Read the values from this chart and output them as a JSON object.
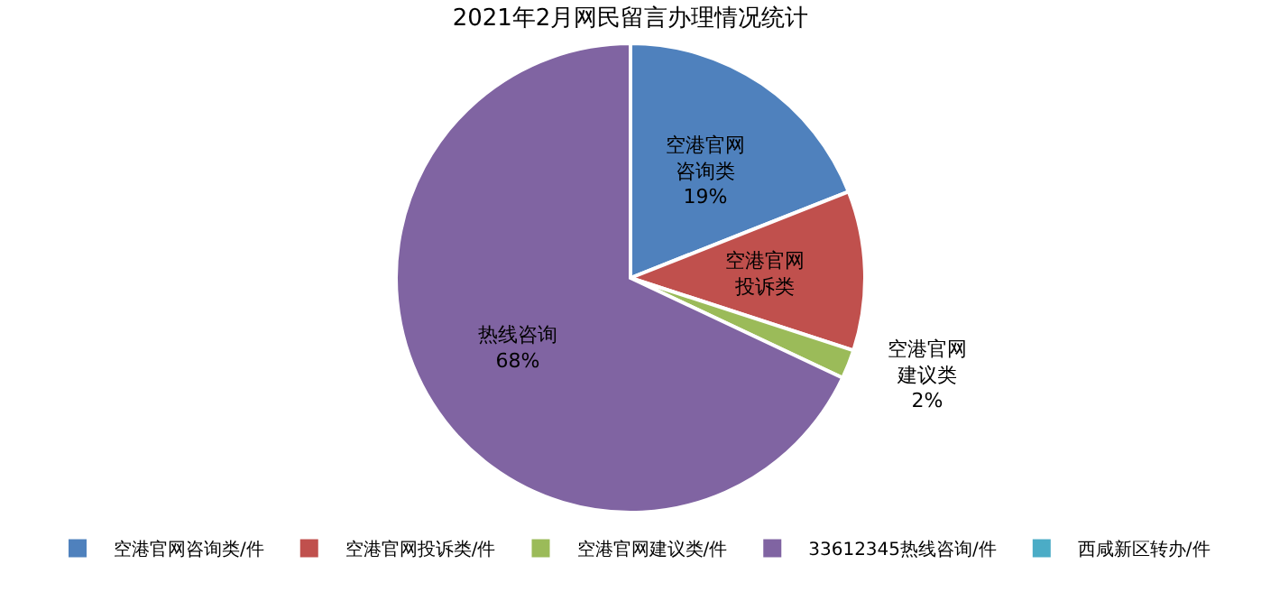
{
  "chart_data": {
    "type": "pie",
    "title": "2021年2月网民留言办理情况统计",
    "categories": [
      "空港官网咨询类/件",
      "空港官网投诉类/件",
      "空港官网建议类/件",
      "33612345热线咨询/件",
      "西咸新区转办/件"
    ],
    "values": [
      19,
      11,
      2,
      68,
      0
    ],
    "colors": [
      "#4f81bd",
      "#c0504d",
      "#9bbb59",
      "#8064a2",
      "#4bacc6"
    ],
    "value_labels": [
      "空港官网咨询类 19%",
      "空港官网投诉类",
      "空港官网建议类 2%",
      "热线咨询 68%",
      null
    ],
    "legend": "bottom"
  }
}
